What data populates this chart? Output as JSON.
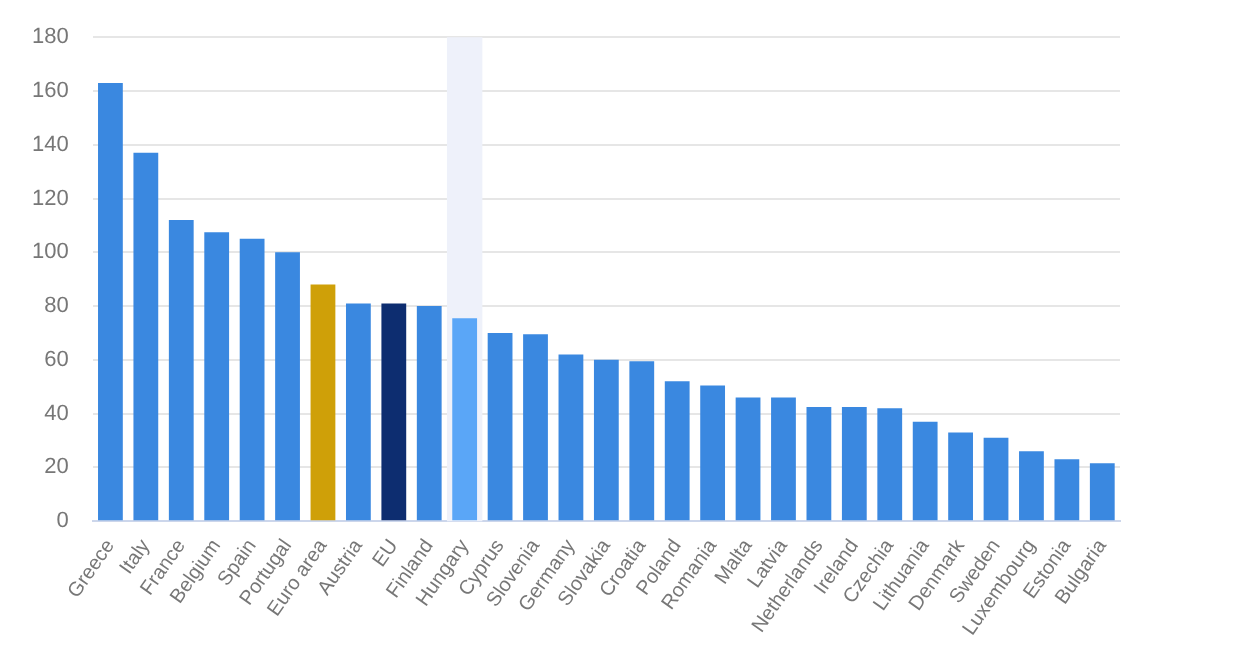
{
  "chart_data": {
    "type": "bar",
    "categories": [
      "Greece",
      "Italy",
      "France",
      "Belgium",
      "Spain",
      "Portugal",
      "Euro area",
      "Austria",
      "EU",
      "Finland",
      "Hungary",
      "Cyprus",
      "Slovenia",
      "Germany",
      "Slovakia",
      "Croatia",
      "Poland",
      "Romania",
      "Malta",
      "Latvia",
      "Netherlands",
      "Ireland",
      "Czechia",
      "Lithuania",
      "Denmark",
      "Sweden",
      "Luxembourg",
      "Estonia",
      "Bulgaria"
    ],
    "values": [
      163,
      137,
      112,
      107.5,
      105,
      100,
      88,
      81,
      81,
      80,
      75.5,
      70,
      69.5,
      62,
      60,
      59.5,
      52,
      50.5,
      46,
      46,
      42.5,
      42.5,
      42,
      37,
      33,
      31,
      26,
      23,
      21.5
    ],
    "colors": [
      "#3a88e0",
      "#3a88e0",
      "#3a88e0",
      "#3a88e0",
      "#3a88e0",
      "#3a88e0",
      "#cfa008",
      "#3a88e0",
      "#0d2d70",
      "#3a88e0",
      "#5aa6f7",
      "#3a88e0",
      "#3a88e0",
      "#3a88e0",
      "#3a88e0",
      "#3a88e0",
      "#3a88e0",
      "#3a88e0",
      "#3a88e0",
      "#3a88e0",
      "#3a88e0",
      "#3a88e0",
      "#3a88e0",
      "#3a88e0",
      "#3a88e0",
      "#3a88e0",
      "#3a88e0",
      "#3a88e0",
      "#3a88e0"
    ],
    "ylim": [
      0,
      180
    ],
    "yticks": [
      0,
      20,
      40,
      60,
      80,
      100,
      120,
      140,
      160,
      180
    ],
    "bands": [
      {
        "axis": "x",
        "from": "Hungary",
        "to": "Hungary",
        "color": "#eef1fa"
      }
    ],
    "grid": "y",
    "legend": false
  }
}
